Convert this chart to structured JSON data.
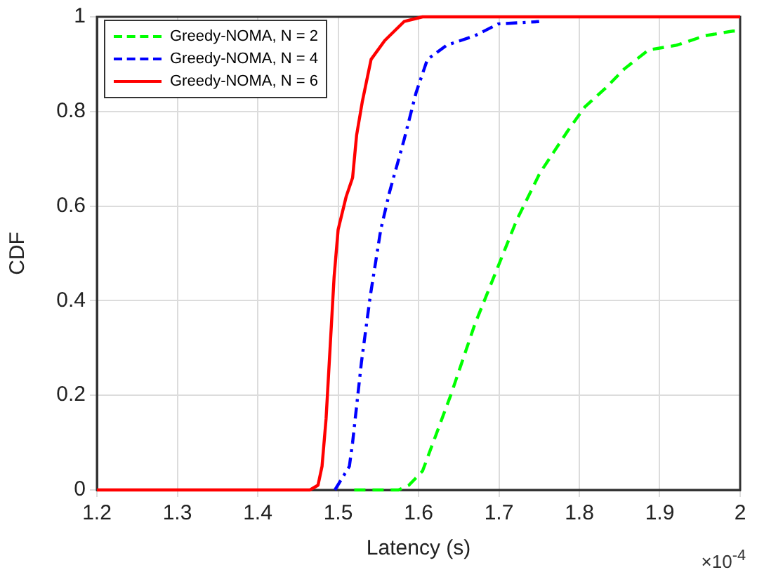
{
  "chart_data": {
    "type": "line",
    "xlabel": "Latency (s)",
    "ylabel": "CDF",
    "annotations": [
      "×10$^{-4}$"
    ],
    "xlim": [
      1.2,
      2
    ],
    "xticks": [
      1.2,
      1.3,
      1.4,
      1.5,
      1.6,
      1.7,
      1.8,
      1.9,
      2
    ],
    "ylim": [
      0,
      1
    ],
    "yticks": [
      0,
      0.2,
      0.4,
      0.6,
      0.8,
      1
    ],
    "grid": true,
    "legend": "top left",
    "marker": "none",
    "series": [
      {
        "name": "Greedy-NOMA, N = 2",
        "color": "#00ff00",
        "line_style": "dashed",
        "x": [
          1.52,
          1.575,
          1.588,
          1.605,
          1.64,
          1.67,
          1.696,
          1.722,
          1.751,
          1.786,
          1.807,
          1.833,
          1.856,
          1.886,
          1.921,
          1.956,
          1.991,
          2
        ],
        "values": [
          0,
          0,
          0.01,
          0.04,
          0.2,
          0.35,
          0.46,
          0.57,
          0.67,
          0.76,
          0.81,
          0.85,
          0.89,
          0.93,
          0.94,
          0.96,
          0.97,
          0.97
        ]
      },
      {
        "name": "Greedy-NOMA, N = 4",
        "color": "#0000ff",
        "line_style": "dashdot",
        "x": [
          1.496,
          1.514,
          1.518,
          1.529,
          1.54,
          1.553,
          1.564,
          1.582,
          1.597,
          1.611,
          1.635,
          1.67,
          1.699,
          1.75
        ],
        "values": [
          0,
          0.05,
          0.1,
          0.27,
          0.41,
          0.55,
          0.63,
          0.74,
          0.84,
          0.91,
          0.94,
          0.96,
          0.985,
          0.99
        ]
      },
      {
        "name": "Greedy-NOMA, N = 6",
        "color": "#ff0000",
        "line_style": "solid",
        "x": [
          1.2,
          1.465,
          1.475,
          1.48,
          1.485,
          1.49,
          1.495,
          1.5,
          1.51,
          1.518,
          1.523,
          1.53,
          1.541,
          1.558,
          1.582,
          1.605,
          2
        ],
        "values": [
          0,
          0,
          0.01,
          0.05,
          0.15,
          0.3,
          0.45,
          0.55,
          0.62,
          0.66,
          0.75,
          0.82,
          0.91,
          0.95,
          0.99,
          1,
          1
        ]
      }
    ]
  }
}
